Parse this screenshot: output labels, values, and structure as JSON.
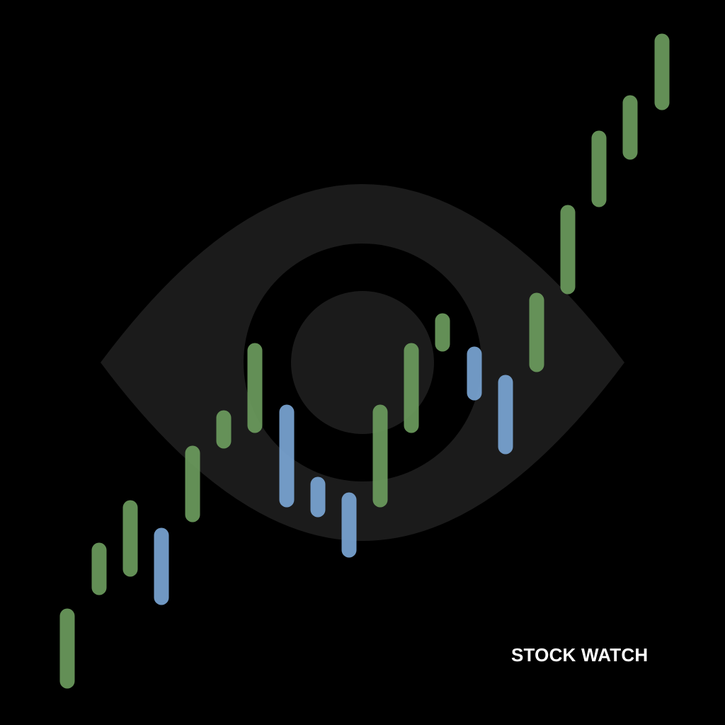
{
  "brand": {
    "name": "STOCK WATCH"
  },
  "icon": {
    "name": "eye-icon",
    "color": "#1b1b1b"
  },
  "colors": {
    "background": "#000000",
    "up": "#6a9a5c",
    "down": "#78a4d2",
    "text": "#ffffff"
  },
  "candles": [
    {
      "direction": "up"
    },
    {
      "direction": "up"
    },
    {
      "direction": "up"
    },
    {
      "direction": "down"
    },
    {
      "direction": "up"
    },
    {
      "direction": "up"
    },
    {
      "direction": "up"
    },
    {
      "direction": "down"
    },
    {
      "direction": "down"
    },
    {
      "direction": "down"
    },
    {
      "direction": "up"
    },
    {
      "direction": "up"
    },
    {
      "direction": "up"
    },
    {
      "direction": "down"
    },
    {
      "direction": "down"
    },
    {
      "direction": "up"
    },
    {
      "direction": "up"
    },
    {
      "direction": "up"
    },
    {
      "direction": "up"
    },
    {
      "direction": "up"
    }
  ]
}
